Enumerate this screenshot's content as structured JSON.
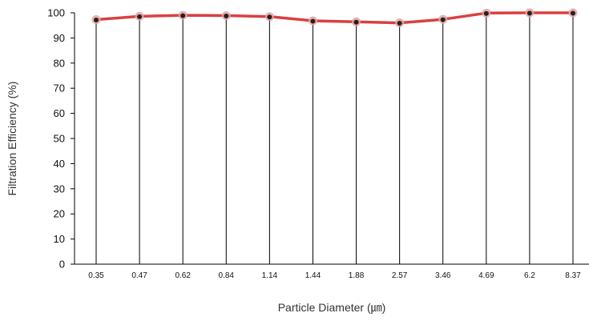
{
  "chart_data": {
    "type": "line",
    "title": "",
    "xlabel": "Particle Diameter (㎛)",
    "ylabel": "Filtration Efficiency (%)",
    "categories": [
      "0.35",
      "0.47",
      "0.62",
      "0.84",
      "1.14",
      "1.44",
      "1.88",
      "2.57",
      "3.46",
      "4.69",
      "6.2",
      "8.37"
    ],
    "yticks": [
      "0",
      "10",
      "20",
      "30",
      "40",
      "50",
      "60",
      "70",
      "80",
      "90",
      "100"
    ],
    "ylim": [
      0,
      100
    ],
    "grid": "vertical drop lines at each category",
    "legend": "none",
    "series": [
      {
        "values": [
          97.3,
          98.6,
          99.0,
          98.9,
          98.5,
          96.8,
          96.4,
          96.0,
          97.4,
          99.9,
          100,
          100
        ]
      }
    ],
    "colors": {
      "line": "#d94040",
      "marker": "#222222",
      "marker_halo": "#e6a2a2",
      "axis": "#000000"
    }
  }
}
